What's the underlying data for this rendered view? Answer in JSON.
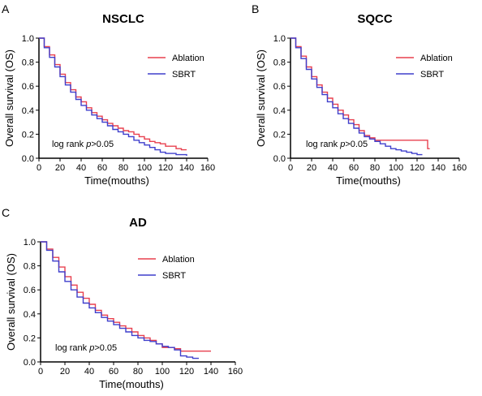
{
  "panel_labels": [
    "A",
    "B",
    "C"
  ],
  "legend_colors": {
    "Ablation": "#e8404f",
    "SBRT": "#3f3fcc"
  },
  "chart_data": [
    {
      "type": "line",
      "title": "NSCLC",
      "xlabel": "Time(mouths)",
      "ylabel": "Overall survival (OS)",
      "xlim": [
        0,
        160
      ],
      "ylim": [
        0,
        1.0
      ],
      "xticks": [
        "0",
        "20",
        "40",
        "60",
        "80",
        "100",
        "120",
        "140",
        "160"
      ],
      "yticks": [
        "0.0",
        "0.2",
        "0.4",
        "0.6",
        "0.8",
        "1.0"
      ],
      "grid": false,
      "legend": "top-right",
      "annotation": {
        "prefix": "log rank ",
        "italic": "p",
        "suffix": ">0.05"
      },
      "series": [
        {
          "name": "Ablation",
          "color": "#e8404f",
          "x": [
            0,
            5,
            10,
            15,
            20,
            25,
            30,
            35,
            40,
            45,
            50,
            55,
            60,
            65,
            70,
            75,
            80,
            85,
            90,
            95,
            100,
            105,
            110,
            115,
            120,
            125,
            130,
            135,
            140
          ],
          "y": [
            1.0,
            0.93,
            0.86,
            0.78,
            0.7,
            0.63,
            0.57,
            0.51,
            0.47,
            0.42,
            0.38,
            0.35,
            0.32,
            0.29,
            0.27,
            0.25,
            0.23,
            0.22,
            0.2,
            0.18,
            0.16,
            0.14,
            0.13,
            0.12,
            0.1,
            0.1,
            0.08,
            0.07,
            0.07
          ]
        },
        {
          "name": "SBRT",
          "color": "#3f3fcc",
          "x": [
            0,
            5,
            10,
            15,
            20,
            25,
            30,
            35,
            40,
            45,
            50,
            55,
            60,
            65,
            70,
            75,
            80,
            85,
            90,
            95,
            100,
            105,
            110,
            115,
            120,
            125,
            130,
            135,
            140
          ],
          "y": [
            1.0,
            0.92,
            0.84,
            0.76,
            0.68,
            0.61,
            0.55,
            0.49,
            0.44,
            0.4,
            0.36,
            0.33,
            0.3,
            0.27,
            0.24,
            0.22,
            0.2,
            0.18,
            0.15,
            0.13,
            0.11,
            0.09,
            0.07,
            0.05,
            0.04,
            0.04,
            0.03,
            0.03,
            0.02
          ]
        }
      ]
    },
    {
      "type": "line",
      "title": "SQCC",
      "xlabel": "Time(mouths)",
      "ylabel": "Overall survival (OS)",
      "xlim": [
        0,
        160
      ],
      "ylim": [
        0,
        1.0
      ],
      "xticks": [
        "0",
        "20",
        "40",
        "60",
        "80",
        "100",
        "120",
        "140",
        "160"
      ],
      "yticks": [
        "0.0",
        "0.2",
        "0.4",
        "0.6",
        "0.8",
        "1.0"
      ],
      "grid": false,
      "legend": "top-right",
      "annotation": {
        "prefix": "log rank ",
        "italic": "p",
        "suffix": ">0.05"
      },
      "series": [
        {
          "name": "Ablation",
          "color": "#e8404f",
          "x": [
            0,
            5,
            10,
            15,
            20,
            25,
            30,
            35,
            40,
            45,
            50,
            55,
            60,
            65,
            70,
            75,
            80,
            90,
            100,
            110,
            120,
            128,
            130,
            132
          ],
          "y": [
            1.0,
            0.93,
            0.85,
            0.76,
            0.68,
            0.61,
            0.55,
            0.5,
            0.45,
            0.4,
            0.36,
            0.32,
            0.28,
            0.23,
            0.19,
            0.17,
            0.15,
            0.15,
            0.15,
            0.15,
            0.15,
            0.15,
            0.08,
            0.08
          ]
        },
        {
          "name": "SBRT",
          "color": "#3f3fcc",
          "x": [
            0,
            5,
            10,
            15,
            20,
            25,
            30,
            35,
            40,
            45,
            50,
            55,
            60,
            65,
            70,
            75,
            80,
            85,
            90,
            95,
            100,
            105,
            110,
            115,
            120,
            125
          ],
          "y": [
            1.0,
            0.92,
            0.83,
            0.74,
            0.66,
            0.59,
            0.53,
            0.47,
            0.42,
            0.37,
            0.33,
            0.29,
            0.25,
            0.21,
            0.18,
            0.16,
            0.14,
            0.12,
            0.1,
            0.08,
            0.07,
            0.06,
            0.05,
            0.04,
            0.03,
            0.03
          ]
        }
      ]
    },
    {
      "type": "line",
      "title": "AD",
      "xlabel": "Time(mouths)",
      "ylabel": "Overall survival (OS)",
      "xlim": [
        0,
        160
      ],
      "ylim": [
        0,
        1.0
      ],
      "xticks": [
        "0",
        "20",
        "40",
        "60",
        "80",
        "100",
        "120",
        "140",
        "160"
      ],
      "yticks": [
        "0.0",
        "0.2",
        "0.4",
        "0.6",
        "0.8",
        "1.0"
      ],
      "grid": false,
      "legend": "top-right",
      "annotation": {
        "prefix": "log rank ",
        "italic": "p",
        "suffix": ">0.05"
      },
      "series": [
        {
          "name": "Ablation",
          "color": "#e8404f",
          "x": [
            0,
            5,
            10,
            15,
            20,
            25,
            30,
            35,
            40,
            45,
            50,
            55,
            60,
            65,
            70,
            75,
            80,
            85,
            90,
            95,
            100,
            105,
            110,
            115,
            120,
            130,
            140
          ],
          "y": [
            1.0,
            0.94,
            0.87,
            0.79,
            0.71,
            0.64,
            0.58,
            0.53,
            0.48,
            0.43,
            0.39,
            0.36,
            0.33,
            0.3,
            0.28,
            0.25,
            0.22,
            0.2,
            0.18,
            0.15,
            0.12,
            0.12,
            0.11,
            0.09,
            0.09,
            0.09,
            0.09
          ]
        },
        {
          "name": "SBRT",
          "color": "#3f3fcc",
          "x": [
            0,
            5,
            10,
            15,
            20,
            25,
            30,
            35,
            40,
            45,
            50,
            55,
            60,
            65,
            70,
            75,
            80,
            85,
            90,
            95,
            100,
            105,
            110,
            115,
            120,
            125,
            130
          ],
          "y": [
            1.0,
            0.93,
            0.84,
            0.75,
            0.67,
            0.6,
            0.54,
            0.49,
            0.45,
            0.41,
            0.37,
            0.34,
            0.31,
            0.28,
            0.25,
            0.22,
            0.2,
            0.18,
            0.17,
            0.15,
            0.13,
            0.12,
            0.1,
            0.05,
            0.04,
            0.03,
            0.03
          ]
        }
      ]
    }
  ]
}
